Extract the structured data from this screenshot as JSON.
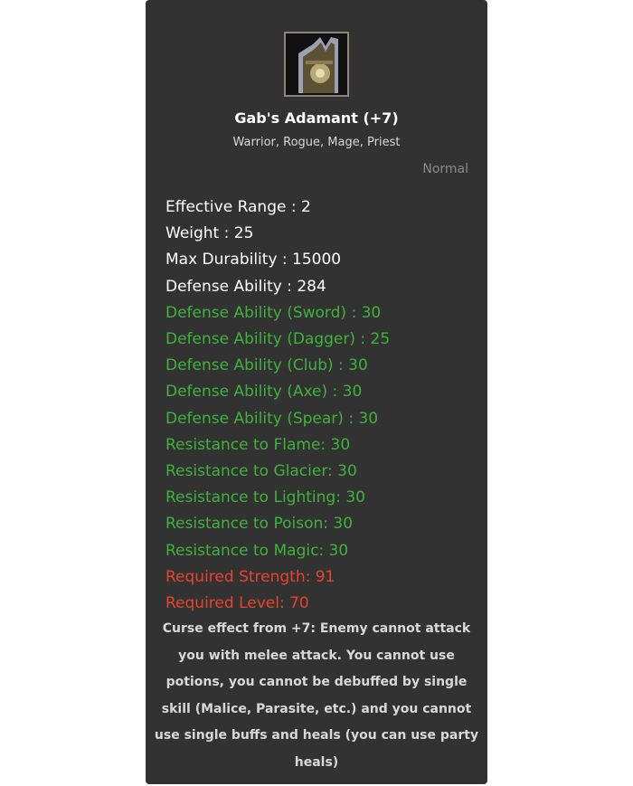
{
  "item": {
    "icon": "shield-icon",
    "name": "Gab's Adamant (+7)",
    "classes": "Warrior, Rogue, Mage, Priest",
    "grade": "Normal",
    "stats": [
      {
        "text": "Effective Range : 2",
        "type": "white"
      },
      {
        "text": "Weight : 25",
        "type": "white"
      },
      {
        "text": "Max Durability : 15000",
        "type": "white"
      },
      {
        "text": "Defense Ability : 284",
        "type": "white"
      },
      {
        "text": "Defense Ability (Sword) : 30",
        "type": "green"
      },
      {
        "text": "Defense Ability (Dagger) : 25",
        "type": "green"
      },
      {
        "text": "Defense Ability (Club) : 30",
        "type": "green"
      },
      {
        "text": "Defense Ability (Axe) : 30",
        "type": "green"
      },
      {
        "text": "Defense Ability (Spear) : 30",
        "type": "green"
      },
      {
        "text": "Resistance to Flame: 30",
        "type": "green"
      },
      {
        "text": "Resistance to Glacier: 30",
        "type": "green"
      },
      {
        "text": "Resistance to Lighting: 30",
        "type": "green"
      },
      {
        "text": "Resistance to Poison: 30",
        "type": "green"
      },
      {
        "text": "Resistance to Magic: 30",
        "type": "green"
      },
      {
        "text": "Required Strength: 91",
        "type": "red"
      },
      {
        "text": "Required Level: 70",
        "type": "red"
      }
    ],
    "curse": "Curse effect from +7: Enemy cannot attack you with melee attack. You cannot use potions, you cannot be debuffed by single skill (Malice, Parasite, etc.) and you cannot use single buffs and heals (you can use party heals)"
  },
  "colors": {
    "background": "#323232",
    "bonus": "#3fb23b",
    "requirement": "#e8432f"
  }
}
